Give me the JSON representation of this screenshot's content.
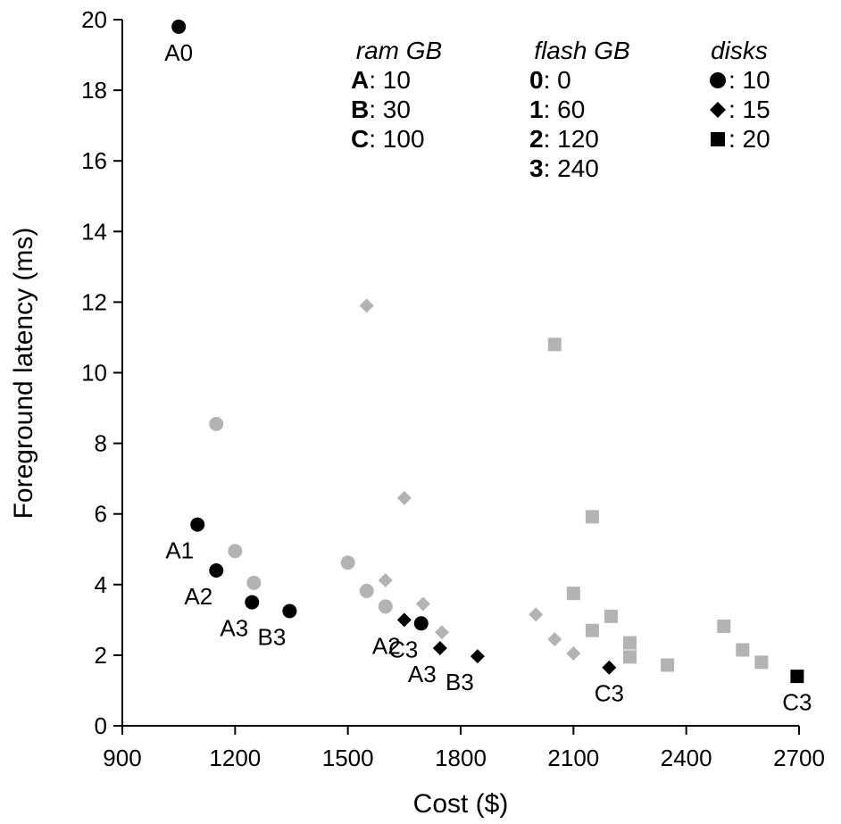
{
  "chart_data": {
    "type": "scatter",
    "xlabel": "Cost ($)",
    "ylabel": "Foreground latency (ms)",
    "xlim": [
      900,
      2700
    ],
    "ylim": [
      0,
      20
    ],
    "xticks": [
      900,
      1200,
      1500,
      1800,
      2100,
      2400,
      2700
    ],
    "yticks": [
      0,
      2,
      4,
      6,
      8,
      10,
      12,
      14,
      16,
      18,
      20
    ],
    "grid": false,
    "colors": {
      "highlighted": "#000000",
      "other": "#b3b3b3"
    },
    "legend": [
      {
        "title": "ram GB",
        "items": [
          {
            "key": "A",
            "value": ": 10"
          },
          {
            "key": "B",
            "value": ": 30"
          },
          {
            "key": "C",
            "value": ": 100"
          }
        ]
      },
      {
        "title": "flash GB",
        "items": [
          {
            "key": "0",
            "value": ": 0"
          },
          {
            "key": "1",
            "value": ": 60"
          },
          {
            "key": "2",
            "value": ": 120"
          },
          {
            "key": "3",
            "value": ": 240"
          }
        ]
      },
      {
        "title": "disks",
        "items": [
          {
            "marker": "circle",
            "value": ": 10"
          },
          {
            "marker": "diamond",
            "value": ": 15"
          },
          {
            "marker": "square",
            "value": ": 20"
          }
        ]
      }
    ],
    "points": [
      {
        "x": 1050,
        "y": 19.8,
        "marker": "circle",
        "highlight": true,
        "label": "A0"
      },
      {
        "x": 1100,
        "y": 5.7,
        "marker": "circle",
        "highlight": true,
        "label": "A1"
      },
      {
        "x": 1150,
        "y": 4.4,
        "marker": "circle",
        "highlight": true,
        "label": "A2"
      },
      {
        "x": 1245,
        "y": 3.5,
        "marker": "circle",
        "highlight": true,
        "label": "A3"
      },
      {
        "x": 1345,
        "y": 3.25,
        "marker": "circle",
        "highlight": true,
        "label": "B3"
      },
      {
        "x": 1695,
        "y": 2.9,
        "marker": "circle",
        "highlight": true,
        "label": "C3"
      },
      {
        "x": 1650,
        "y": 3.0,
        "marker": "diamond",
        "highlight": true,
        "label": "A2"
      },
      {
        "x": 1745,
        "y": 2.2,
        "marker": "diamond",
        "highlight": true,
        "label": "A3"
      },
      {
        "x": 1845,
        "y": 1.97,
        "marker": "diamond",
        "highlight": true,
        "label": "B3"
      },
      {
        "x": 2195,
        "y": 1.65,
        "marker": "diamond",
        "highlight": true,
        "label": "C3"
      },
      {
        "x": 2695,
        "y": 1.4,
        "marker": "square",
        "highlight": true,
        "label": "C3"
      },
      {
        "x": 1150,
        "y": 8.55,
        "marker": "circle",
        "highlight": false
      },
      {
        "x": 1200,
        "y": 4.95,
        "marker": "circle",
        "highlight": false
      },
      {
        "x": 1250,
        "y": 4.05,
        "marker": "circle",
        "highlight": false
      },
      {
        "x": 1500,
        "y": 4.62,
        "marker": "circle",
        "highlight": false
      },
      {
        "x": 1550,
        "y": 3.82,
        "marker": "circle",
        "highlight": false
      },
      {
        "x": 1600,
        "y": 3.38,
        "marker": "circle",
        "highlight": false
      },
      {
        "x": 1550,
        "y": 11.9,
        "marker": "diamond",
        "highlight": false
      },
      {
        "x": 1650,
        "y": 6.45,
        "marker": "diamond",
        "highlight": false
      },
      {
        "x": 1600,
        "y": 4.12,
        "marker": "diamond",
        "highlight": false
      },
      {
        "x": 1700,
        "y": 3.45,
        "marker": "diamond",
        "highlight": false
      },
      {
        "x": 1750,
        "y": 2.65,
        "marker": "diamond",
        "highlight": false
      },
      {
        "x": 2000,
        "y": 3.15,
        "marker": "diamond",
        "highlight": false
      },
      {
        "x": 2050,
        "y": 2.45,
        "marker": "diamond",
        "highlight": false
      },
      {
        "x": 2100,
        "y": 2.05,
        "marker": "diamond",
        "highlight": false
      },
      {
        "x": 2050,
        "y": 10.8,
        "marker": "square",
        "highlight": false
      },
      {
        "x": 2150,
        "y": 5.92,
        "marker": "square",
        "highlight": false
      },
      {
        "x": 2100,
        "y": 3.75,
        "marker": "square",
        "highlight": false
      },
      {
        "x": 2200,
        "y": 3.1,
        "marker": "square",
        "highlight": false
      },
      {
        "x": 2150,
        "y": 2.7,
        "marker": "square",
        "highlight": false
      },
      {
        "x": 2250,
        "y": 2.35,
        "marker": "square",
        "highlight": false
      },
      {
        "x": 2250,
        "y": 1.95,
        "marker": "square",
        "highlight": false
      },
      {
        "x": 2350,
        "y": 1.72,
        "marker": "square",
        "highlight": false
      },
      {
        "x": 2500,
        "y": 2.82,
        "marker": "square",
        "highlight": false
      },
      {
        "x": 2550,
        "y": 2.15,
        "marker": "square",
        "highlight": false
      },
      {
        "x": 2600,
        "y": 1.8,
        "marker": "square",
        "highlight": false
      }
    ]
  }
}
